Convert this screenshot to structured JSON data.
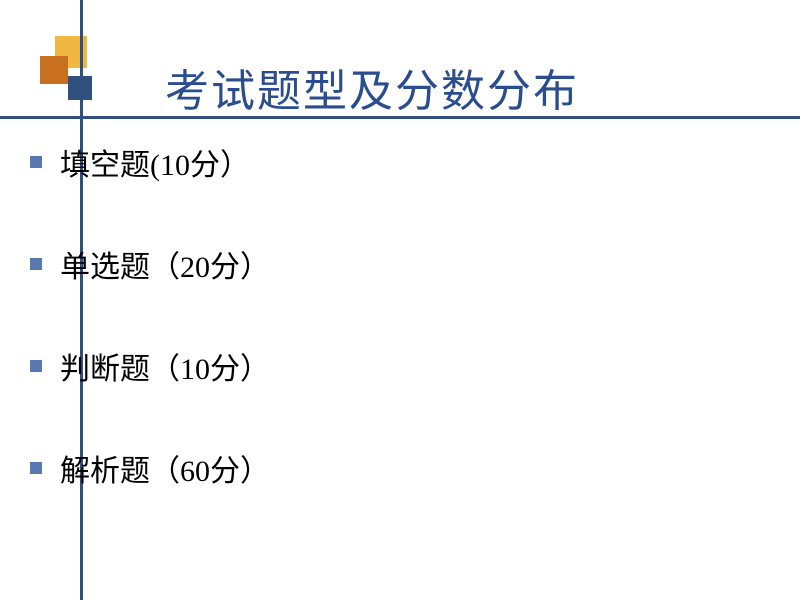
{
  "slide": {
    "title": "考试题型及分数分布",
    "title_color": "#2a4d8f",
    "title_fontsize": 44,
    "background_color": "#ffffff",
    "line_color": "#305080",
    "bullet_color": "#5878b0",
    "text_color": "#000000",
    "bullet_fontsize": 30,
    "decoration": {
      "square1_color": "#f0b840",
      "square2_color": "#c87020",
      "square3_color": "#305080"
    },
    "items": [
      "填空题(10分）",
      "单选题（20分）",
      "判断题（10分）",
      "解析题（60分）"
    ]
  }
}
